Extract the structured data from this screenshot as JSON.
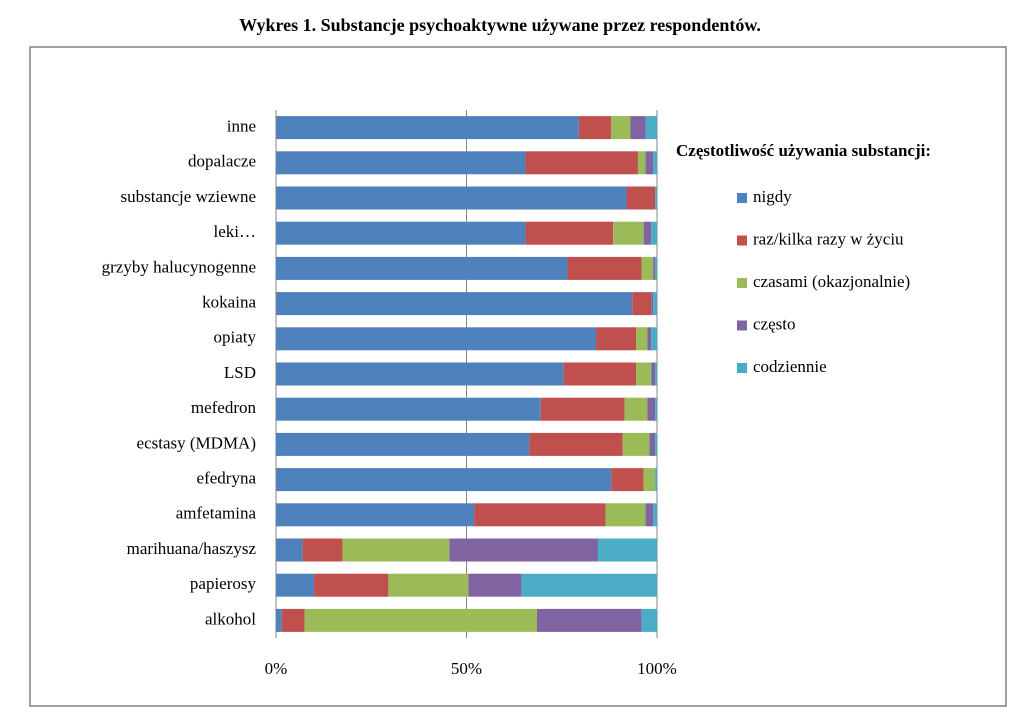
{
  "chart_data": {
    "type": "bar",
    "orientation": "horizontal",
    "stacked": true,
    "title": "Wykres 1. Substancje psychoaktywne używane przez respondentów.",
    "legend_title": "Częstotliwość używania substancji:",
    "categories": [
      "inne",
      "dopalacze",
      "substancje wziewne",
      "leki…",
      "grzyby halucynogenne",
      "kokaina",
      "opiaty",
      "LSD",
      "mefedron",
      "ecstasy (MDMA)",
      "efedryna",
      "amfetamina",
      "marihuana/haszysz",
      "papierosy",
      "alkohol"
    ],
    "series": [
      {
        "name": "nigdy",
        "color": "#4f81bd",
        "values": [
          79.5,
          65.5,
          92,
          65.5,
          76.5,
          93.5,
          84,
          75.5,
          69.5,
          66.5,
          88,
          52,
          7,
          10,
          1.5
        ]
      },
      {
        "name": "raz/kilka razy w życiu",
        "color": "#c0504d",
        "values": [
          8.5,
          29.5,
          7.5,
          23,
          19.5,
          5,
          10.5,
          19,
          22,
          24.5,
          8.5,
          34.5,
          10.5,
          19.5,
          6
        ]
      },
      {
        "name": "czasami (okazjonalnie)",
        "color": "#9bbb59",
        "values": [
          5,
          2,
          0,
          8,
          3,
          0,
          3,
          4,
          6,
          7,
          3,
          10.5,
          28,
          21,
          61
        ]
      },
      {
        "name": "często",
        "color": "#8064a2",
        "values": [
          4,
          2,
          0,
          2,
          0.5,
          0.5,
          1,
          1,
          2,
          1.5,
          0,
          2,
          39,
          14,
          27.5
        ]
      },
      {
        "name": "codziennie",
        "color": "#4bacc6",
        "values": [
          3,
          1,
          0.5,
          1.5,
          0.5,
          1,
          1.5,
          0.5,
          0.5,
          0.5,
          0.5,
          1,
          15.5,
          35.5,
          4
        ]
      }
    ],
    "xlim": [
      0,
      100
    ],
    "xticks": [
      {
        "value": 0,
        "label": "0%"
      },
      {
        "value": 50,
        "label": "50%"
      },
      {
        "value": 100,
        "label": "100%"
      }
    ],
    "grid": true,
    "legend": "right"
  }
}
